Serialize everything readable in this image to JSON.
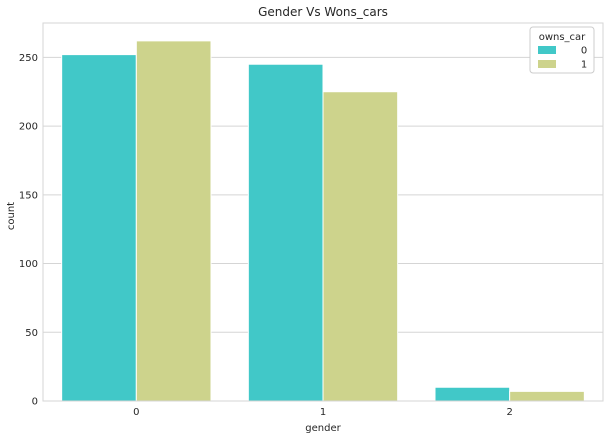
{
  "chart_data": {
    "type": "bar",
    "title": "Gender Vs Wons_cars",
    "xlabel": "gender",
    "ylabel": "count",
    "categories": [
      "0",
      "1",
      "2"
    ],
    "series": [
      {
        "name": "0",
        "values": [
          252,
          245,
          10
        ],
        "color": "#41c8c8"
      },
      {
        "name": "1",
        "values": [
          262,
          225,
          7
        ],
        "color": "#cdd38c"
      }
    ],
    "ylim": [
      0,
      275
    ],
    "yticks": [
      0,
      50,
      100,
      150,
      200,
      250
    ],
    "grid": true,
    "legend": {
      "title": "owns_car",
      "placement": "top-right"
    }
  }
}
